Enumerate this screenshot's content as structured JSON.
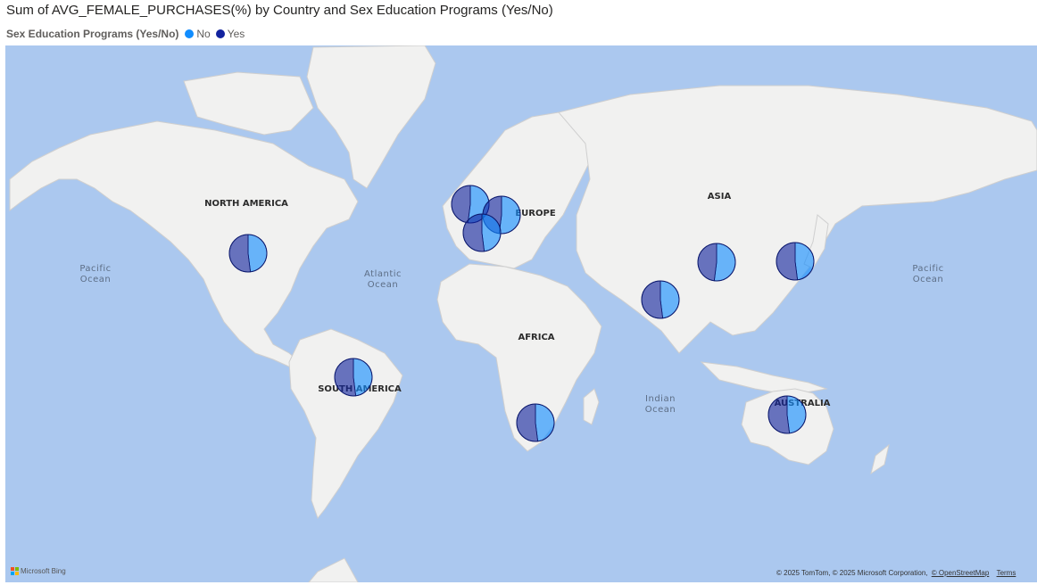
{
  "title": "Sum of AVG_FEMALE_PURCHASES(%) by Country and Sex Education Programs (Yes/No)",
  "legend": {
    "title": "Sex Education Programs (Yes/No)",
    "items": [
      {
        "label": "No",
        "color": "#118dff"
      },
      {
        "label": "Yes",
        "color": "#12239e"
      }
    ]
  },
  "map_labels": {
    "continents": [
      "NORTH AMERICA",
      "EUROPE",
      "ASIA",
      "AFRICA",
      "SOUTH AMERICA",
      "AUSTRALIA"
    ],
    "oceans": {
      "pacific_left": [
        "Pacific",
        "Ocean"
      ],
      "atlantic": [
        "Atlantic",
        "Ocean"
      ],
      "indian": [
        "Indian",
        "Ocean"
      ],
      "pacific_right": [
        "Pacific",
        "Ocean"
      ]
    }
  },
  "chart_data": {
    "type": "map-pie",
    "series": [
      "No",
      "Yes"
    ],
    "points": [
      {
        "location": "United States",
        "no": 0.48,
        "yes": 0.52
      },
      {
        "location": "Brazil",
        "no": 0.48,
        "yes": 0.52
      },
      {
        "location": "United Kingdom",
        "no": 0.52,
        "yes": 0.48
      },
      {
        "location": "Germany",
        "no": 0.52,
        "yes": 0.48
      },
      {
        "location": "France",
        "no": 0.48,
        "yes": 0.52
      },
      {
        "location": "South Africa",
        "no": 0.48,
        "yes": 0.52
      },
      {
        "location": "India",
        "no": 0.48,
        "yes": 0.52
      },
      {
        "location": "China",
        "no": 0.52,
        "yes": 0.48
      },
      {
        "location": "Japan",
        "no": 0.48,
        "yes": 0.52
      },
      {
        "location": "Australia",
        "no": 0.48,
        "yes": 0.52
      }
    ]
  },
  "footer": {
    "bing": "Microsoft Bing",
    "copyright": "© 2025 TomTom, © 2025 Microsoft Corporation,",
    "osm_link": "© OpenStreetMap",
    "terms_link": "Terms"
  }
}
